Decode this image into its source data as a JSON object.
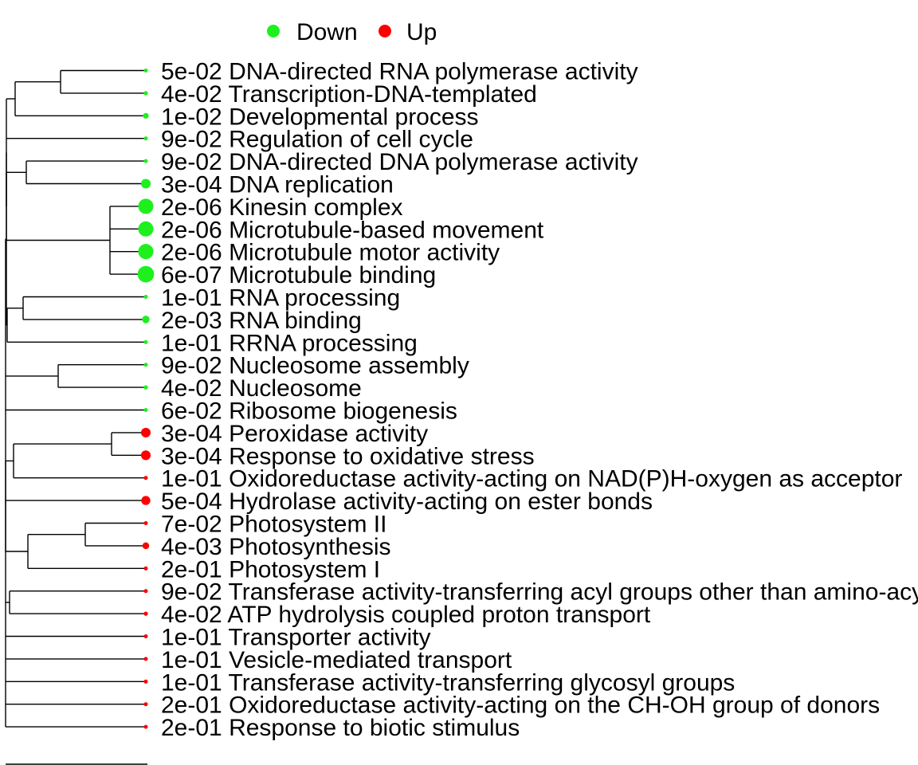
{
  "chart_data": {
    "type": "dendrogram",
    "legend": {
      "placement": "top",
      "items": [
        {
          "label": "Down",
          "color": "#1EF01E"
        },
        {
          "label": "Up",
          "color": "#FF0000"
        }
      ]
    },
    "colors": {
      "down": "#1EF01E",
      "up": "#FF0000",
      "tree": "#000000"
    },
    "terms": [
      {
        "pvalue": "5e-02",
        "name": "DNA-directed RNA polymerase activity",
        "direction": "down",
        "p": 0.05
      },
      {
        "pvalue": "4e-02",
        "name": "Transcription-DNA-templated",
        "direction": "down",
        "p": 0.04
      },
      {
        "pvalue": "1e-02",
        "name": "Developmental process",
        "direction": "down",
        "p": 0.01
      },
      {
        "pvalue": "9e-02",
        "name": "Regulation of cell cycle",
        "direction": "down",
        "p": 0.09
      },
      {
        "pvalue": "9e-02",
        "name": "DNA-directed DNA polymerase activity",
        "direction": "down",
        "p": 0.09
      },
      {
        "pvalue": "3e-04",
        "name": "DNA replication",
        "direction": "down",
        "p": 0.0003
      },
      {
        "pvalue": "2e-06",
        "name": "Kinesin complex",
        "direction": "down",
        "p": 2e-06
      },
      {
        "pvalue": "2e-06",
        "name": "Microtubule-based movement",
        "direction": "down",
        "p": 2e-06
      },
      {
        "pvalue": "2e-06",
        "name": "Microtubule motor activity",
        "direction": "down",
        "p": 2e-06
      },
      {
        "pvalue": "6e-07",
        "name": "Microtubule binding",
        "direction": "down",
        "p": 6e-07
      },
      {
        "pvalue": "1e-01",
        "name": "RNA processing",
        "direction": "down",
        "p": 0.1
      },
      {
        "pvalue": "2e-03",
        "name": "RNA binding",
        "direction": "down",
        "p": 0.002
      },
      {
        "pvalue": "1e-01",
        "name": "RRNA processing",
        "direction": "down",
        "p": 0.1
      },
      {
        "pvalue": "9e-02",
        "name": "Nucleosome assembly",
        "direction": "down",
        "p": 0.09
      },
      {
        "pvalue": "4e-02",
        "name": "Nucleosome",
        "direction": "down",
        "p": 0.04
      },
      {
        "pvalue": "6e-02",
        "name": "Ribosome biogenesis",
        "direction": "down",
        "p": 0.06
      },
      {
        "pvalue": "3e-04",
        "name": "Peroxidase activity",
        "direction": "up",
        "p": 0.0003
      },
      {
        "pvalue": "3e-04",
        "name": "Response to oxidative stress",
        "direction": "up",
        "p": 0.0003
      },
      {
        "pvalue": "1e-01",
        "name": "Oxidoreductase activity-acting on NAD(P)H-oxygen as acceptor",
        "direction": "up",
        "p": 0.1
      },
      {
        "pvalue": "5e-04",
        "name": "Hydrolase activity-acting on ester bonds",
        "direction": "up",
        "p": 0.0005
      },
      {
        "pvalue": "7e-02",
        "name": "Photosystem II",
        "direction": "up",
        "p": 0.07
      },
      {
        "pvalue": "4e-03",
        "name": "Photosynthesis",
        "direction": "up",
        "p": 0.004
      },
      {
        "pvalue": "2e-01",
        "name": "Photosystem I",
        "direction": "up",
        "p": 0.2
      },
      {
        "pvalue": "9e-02",
        "name": "Transferase activity-transferring acyl groups other than amino-acyl groups",
        "direction": "up",
        "p": 0.09
      },
      {
        "pvalue": "4e-02",
        "name": "ATP hydrolysis coupled proton transport",
        "direction": "up",
        "p": 0.04
      },
      {
        "pvalue": "1e-01",
        "name": "Transporter activity",
        "direction": "up",
        "p": 0.1
      },
      {
        "pvalue": "1e-01",
        "name": "Vesicle-mediated transport",
        "direction": "up",
        "p": 0.1
      },
      {
        "pvalue": "1e-01",
        "name": "Transferase activity-transferring glycosyl groups",
        "direction": "up",
        "p": 0.1
      },
      {
        "pvalue": "2e-01",
        "name": "Oxidoreductase activity-acting on the CH-OH group of donors",
        "direction": "up",
        "p": 0.2
      },
      {
        "pvalue": "2e-01",
        "name": "Response to biotic stimulus",
        "direction": "up",
        "p": 0.2
      }
    ]
  }
}
